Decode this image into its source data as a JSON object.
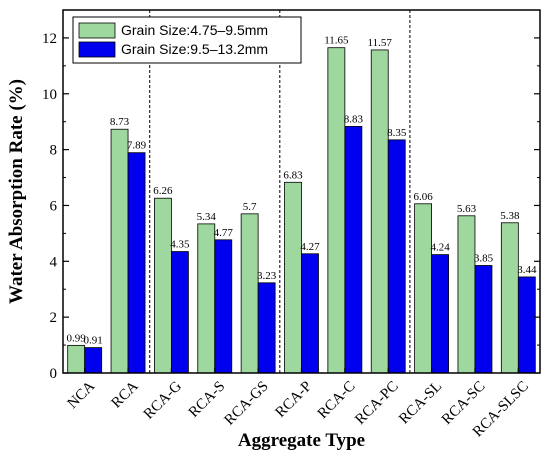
{
  "chart_data": {
    "type": "bar",
    "xlabel": "Aggregate Type",
    "ylabel": "Water Absorption Rate (%)",
    "ylim": [
      0,
      13
    ],
    "yticks": [
      0,
      2,
      4,
      6,
      8,
      10,
      12
    ],
    "categories": [
      "NCA",
      "RCA",
      "RCA-G",
      "RCA-S",
      "RCA-GS",
      "RCA-P",
      "RCA-C",
      "RCA-PC",
      "RCA-SL",
      "RCA-SC",
      "RCA-SLSC"
    ],
    "series": [
      {
        "name": "Grain Size:4.75–9.5mm",
        "color": "#9ed89e",
        "values": [
          0.99,
          8.73,
          6.26,
          5.34,
          5.7,
          6.83,
          11.65,
          11.57,
          6.06,
          5.63,
          5.38
        ],
        "labels": [
          "0.99",
          "8.73",
          "6.26",
          "5.34",
          "5.7",
          "6.83",
          "11.65",
          "11.57",
          "6.06",
          "5.63",
          "5.38"
        ]
      },
      {
        "name": "Grain Size:9.5–13.2mm",
        "color": "#0000ee",
        "values": [
          0.91,
          7.89,
          4.35,
          4.77,
          3.23,
          4.27,
          8.83,
          8.35,
          4.24,
          3.85,
          3.44
        ],
        "labels": [
          "0.91",
          "7.89",
          "4.35",
          "4.77",
          "3.23",
          "4.27",
          "8.83",
          "8.35",
          "4.24",
          "3.85",
          "3.44"
        ]
      }
    ],
    "group_separators_after": [
      1,
      4,
      7
    ],
    "legend_position": "top-left",
    "grid": false
  }
}
